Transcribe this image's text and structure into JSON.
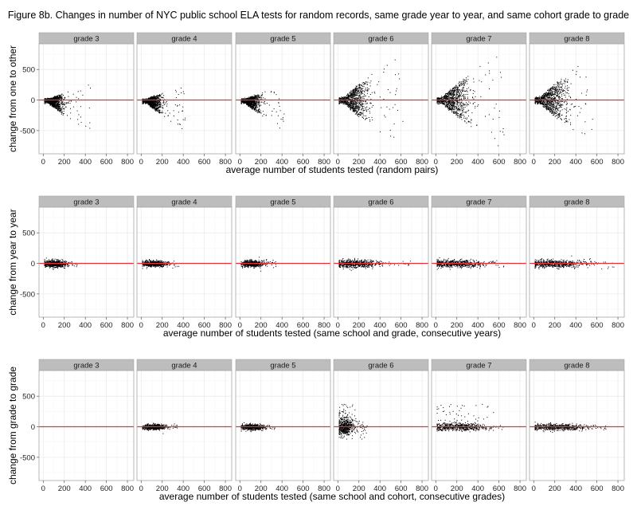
{
  "title": "Figure 8b. Changes in number of NYC public school ELA tests for random records, same grade year to year, and same cohort grade to grade",
  "colors": {
    "strip_fill": "#bdbdbd",
    "panel_border": "#a6a6a6",
    "gridline": "#ebebeb",
    "zero_line": "#e8313a",
    "points": "#000000"
  },
  "chart_data": [
    {
      "type": "scatter",
      "facets": [
        "grade 3",
        "grade 4",
        "grade 5",
        "grade 6",
        "grade 7",
        "grade 8"
      ],
      "xlabel": "average number of students tested (random pairs)",
      "ylabel": "change from one to other",
      "xticks": [
        0,
        200,
        400,
        600,
        800
      ],
      "xtick_labels": [
        "0",
        "200",
        "400",
        "600",
        "800"
      ],
      "yticks": [
        -500,
        0,
        500
      ],
      "ytick_labels": [
        "-500",
        "0",
        "500"
      ],
      "xlim": [
        -40,
        860
      ],
      "ylim": [
        -880,
        920
      ],
      "grid": true,
      "reference_line_y": 0,
      "clouds": [
        {
          "center_x": [
            90,
            100,
            95,
            140,
            150,
            150
          ],
          "x_spread": [
            45,
            45,
            45,
            70,
            85,
            85
          ],
          "x_max": [
            450,
            430,
            420,
            620,
            660,
            560
          ],
          "slope_up": [
            0.9,
            0.9,
            0.9,
            1.6,
            1.6,
            1.6
          ],
          "slope_down": [
            1.4,
            1.4,
            1.4,
            1.6,
            1.5,
            1.5
          ],
          "symmetric": [
            false,
            false,
            false,
            true,
            true,
            true
          ]
        }
      ]
    },
    {
      "type": "scatter",
      "facets": [
        "grade 3",
        "grade 4",
        "grade 5",
        "grade 6",
        "grade 7",
        "grade 8"
      ],
      "xlabel": "average number of students tested (same school and grade, consecutive years)",
      "ylabel": "change from year to year",
      "xticks": [
        0,
        200,
        400,
        600,
        800
      ],
      "xtick_labels": [
        "0",
        "200",
        "400",
        "600",
        "800"
      ],
      "yticks": [
        -500,
        0,
        500
      ],
      "ytick_labels": [
        "-500",
        "0",
        "500"
      ],
      "xlim": [
        -40,
        860
      ],
      "ylim": [
        -880,
        920
      ],
      "grid": true,
      "reference_line_y": 0,
      "clouds": [
        {
          "center_x": [
            110,
            115,
            110,
            160,
            180,
            180
          ],
          "x_spread": [
            55,
            55,
            55,
            110,
            140,
            140
          ],
          "x_max": [
            330,
            360,
            340,
            700,
            680,
            760
          ],
          "y_spread": [
            28,
            25,
            25,
            32,
            30,
            30
          ]
        }
      ]
    },
    {
      "type": "scatter",
      "facets": [
        "grade 3",
        "grade 4",
        "grade 5",
        "grade 6",
        "grade 7",
        "grade 8"
      ],
      "xlabel": "average number of students tested (same school and cohort, consecutive grades)",
      "ylabel": "change from grade to grade",
      "xticks": [
        0,
        200,
        400,
        600,
        800
      ],
      "xtick_labels": [
        "0",
        "200",
        "400",
        "600",
        "800"
      ],
      "yticks": [
        -500,
        0,
        500
      ],
      "ytick_labels": [
        "-500",
        "0",
        "500"
      ],
      "xlim": [
        -40,
        860
      ],
      "ylim": [
        -880,
        920
      ],
      "grid": true,
      "reference_line_y": 0,
      "clouds": [
        {
          "center_x": [
            0,
            120,
            120,
            60,
            200,
            220
          ],
          "x_spread": [
            0,
            55,
            55,
            50,
            140,
            140
          ],
          "x_max": [
            0,
            340,
            340,
            280,
            650,
            700
          ],
          "y_spread": [
            0,
            22,
            22,
            70,
            30,
            25
          ]
        }
      ]
    }
  ]
}
